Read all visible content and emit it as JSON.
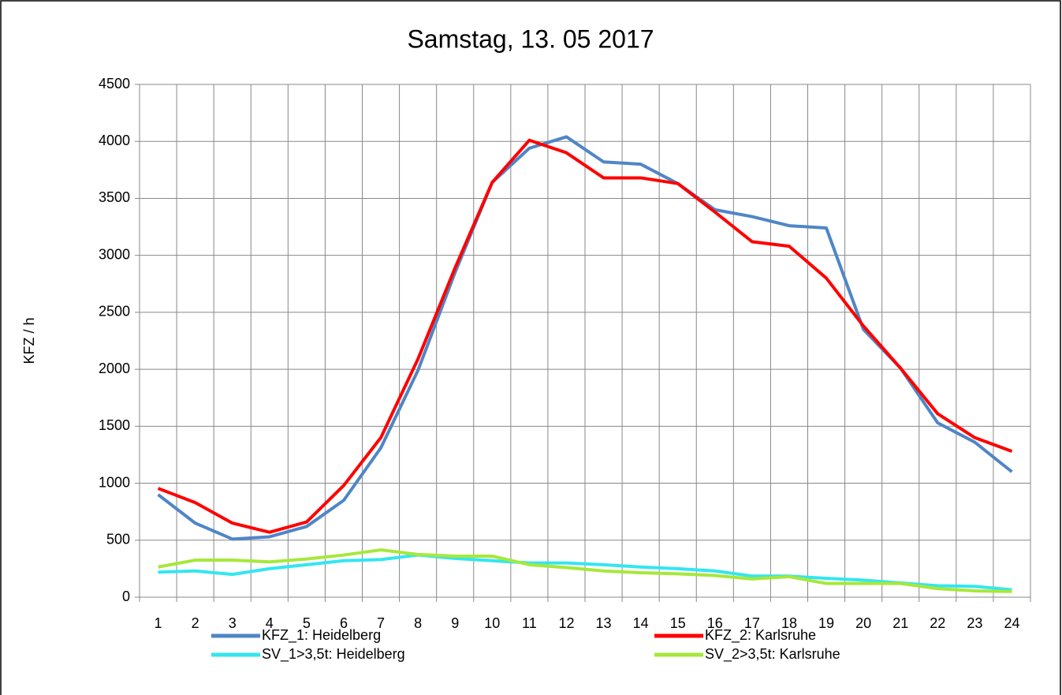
{
  "chart_data": {
    "type": "line",
    "title": "Samstag, 13. 05 2017",
    "y_label": "KFZ / h",
    "categories": [
      "1",
      "2",
      "3",
      "4",
      "5",
      "6",
      "7",
      "8",
      "9",
      "10",
      "11",
      "12",
      "13",
      "14",
      "15",
      "16",
      "17",
      "18",
      "19",
      "20",
      "21",
      "22",
      "23",
      "24"
    ],
    "series": [
      {
        "name": "KFZ_1: Heidelberg",
        "color": "#4f86c6",
        "values": [
          900,
          650,
          510,
          530,
          620,
          850,
          1310,
          1990,
          2850,
          3640,
          3940,
          4040,
          3820,
          3800,
          3630,
          3400,
          3340,
          3260,
          3240,
          2350,
          2010,
          1530,
          1360,
          1100
        ]
      },
      {
        "name": "KFZ_2: Karlsruhe",
        "color": "#ff0000",
        "values": [
          955,
          830,
          650,
          570,
          660,
          980,
          1400,
          2090,
          2890,
          3640,
          4010,
          3900,
          3680,
          3680,
          3630,
          3380,
          3120,
          3080,
          2800,
          2380,
          2010,
          1610,
          1400,
          1280
        ]
      },
      {
        "name": "SV_1>3,5t: Heidelberg",
        "color": "#33e6f0",
        "values": [
          220,
          230,
          200,
          250,
          285,
          320,
          330,
          370,
          340,
          320,
          300,
          300,
          285,
          265,
          250,
          230,
          185,
          185,
          165,
          150,
          125,
          100,
          95,
          65
        ]
      },
      {
        "name": "SV_2>3,5t: Karlsruhe",
        "color": "#a6e83a",
        "values": [
          265,
          325,
          325,
          310,
          335,
          370,
          415,
          375,
          360,
          360,
          285,
          260,
          230,
          215,
          205,
          190,
          160,
          180,
          120,
          120,
          120,
          75,
          55,
          50
        ]
      }
    ],
    "ylim": [
      0,
      4500
    ],
    "yticks": [
      0,
      500,
      1000,
      1500,
      2000,
      2500,
      3000,
      3500,
      4000,
      4500
    ],
    "grid": true,
    "legend": "bottom"
  }
}
